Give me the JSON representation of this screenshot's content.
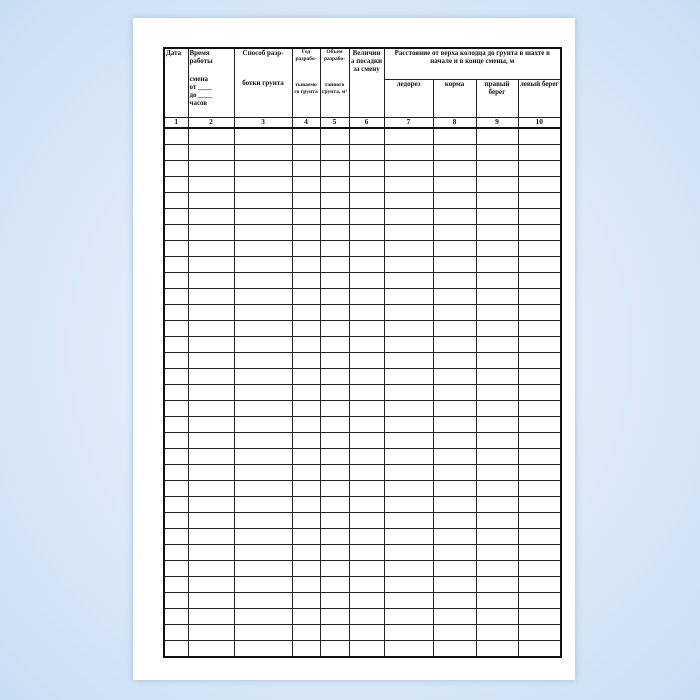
{
  "form": {
    "headers": {
      "date": "Дата",
      "time_top": "Время работы",
      "time_bottom": [
        "смена",
        "от ____",
        "до ____",
        "часов"
      ],
      "method_top": "Способ разр-",
      "method_bottom": "ботки грунта",
      "year_top": "Год разрабо-",
      "year_bottom": "тываемо го грунта",
      "volume_top": "Объем разрабо-",
      "volume_bottom": "танного грунта, м³",
      "settlement": "Величин а посадки за смену",
      "distance": "Расстояние от верха колодца до грунта в шахте в начале и в конце смены, м",
      "sub": [
        "ледорез",
        "корма",
        "правый берег",
        "левый берег"
      ]
    },
    "column_numbers": [
      "1",
      "2",
      "3",
      "4",
      "5",
      "6",
      "7",
      "8",
      "9",
      "10"
    ],
    "empty_rows": 33
  }
}
